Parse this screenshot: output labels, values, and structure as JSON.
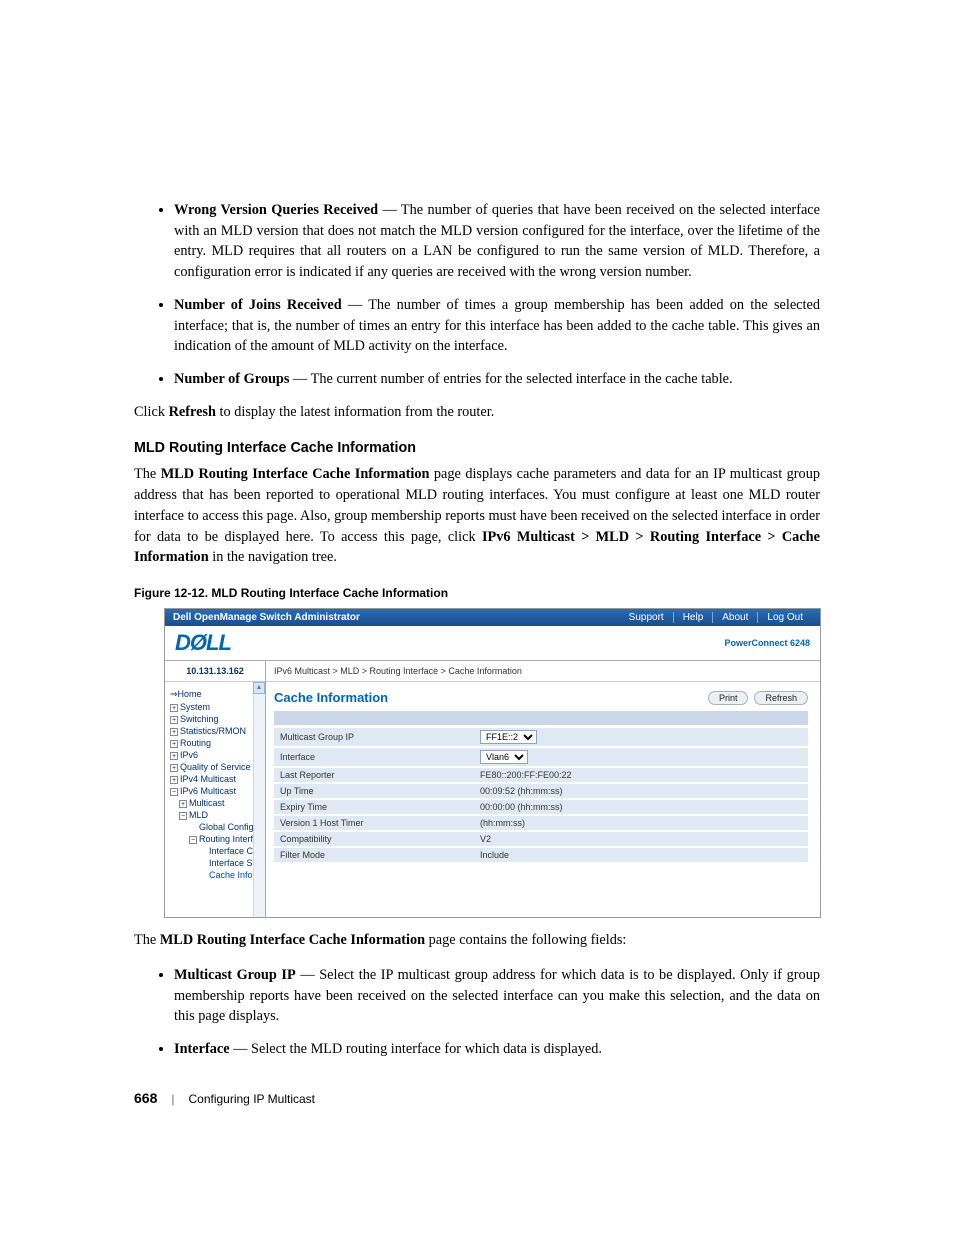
{
  "doc": {
    "bullets1": [
      {
        "term": "Wrong Version Queries Received",
        "desc": " — The number of queries that have been received on the selected interface with an MLD version that does not match the MLD version configured for the interface, over the lifetime of the entry. MLD requires that all routers on a LAN be configured to run the same version of MLD. Therefore, a configuration error is indicated if any queries are received with the wrong version number."
      },
      {
        "term": "Number of Joins Received",
        "desc": " — The number of times a group membership has been added on the selected interface; that is, the number of times an entry for this interface has been added to the cache table. This gives an indication of the amount of MLD activity on the interface."
      },
      {
        "term": "Number of Groups",
        "desc": " — The current number of entries for the selected interface in the cache table."
      }
    ],
    "refresh_sentence_pre": "Click ",
    "refresh_bold": "Refresh",
    "refresh_sentence_post": " to display the latest information from the router.",
    "section_heading": "MLD Routing Interface Cache Information",
    "para1_pre": "The ",
    "para1_bold": "MLD Routing Interface Cache Information",
    "para1_post": " page displays cache parameters and data for an IP multicast group address that has been reported to operational MLD routing interfaces. You must configure at least one MLD router interface to access this page. Also, group membership reports must have been received on the selected interface in order for data to be displayed here. To access this page, click ",
    "para1_path": "IPv6 Multicast > MLD > Routing Interface > Cache Information",
    "para1_tail": " in the navigation tree.",
    "figure_caption": "Figure 12-12.    MLD Routing Interface Cache Information",
    "para2_pre": "The ",
    "para2_bold": "MLD Routing Interface Cache Information",
    "para2_post": " page contains the following fields:",
    "bullets2": [
      {
        "term": "Multicast Group IP",
        "desc": " — Select the IP multicast group address for which data is to be displayed. Only if group membership reports have been received on the selected interface can you make this selection, and the data on this page displays."
      },
      {
        "term": "Interface",
        "desc": " — Select the MLD routing interface for which data is displayed."
      }
    ],
    "footer_page": "668",
    "footer_text": "Configuring IP Multicast"
  },
  "screenshot": {
    "titlebar_title": "Dell OpenManage Switch Administrator",
    "titlebar_links": [
      "Support",
      "Help",
      "About",
      "Log Out"
    ],
    "logo_text": "DØLL",
    "model": "PowerConnect 6248",
    "ip": "10.131.13.162",
    "breadcrumb": "IPv6 Multicast > MLD > Routing Interface > Cache Information",
    "content_title": "Cache Information",
    "btn_print": "Print",
    "btn_refresh": "Refresh",
    "tree": [
      {
        "indent": 0,
        "icon": "",
        "label": "Home",
        "prefix": "⇒"
      },
      {
        "indent": 0,
        "icon": "+",
        "label": "System"
      },
      {
        "indent": 0,
        "icon": "+",
        "label": "Switching"
      },
      {
        "indent": 0,
        "icon": "+",
        "label": "Statistics/RMON"
      },
      {
        "indent": 0,
        "icon": "+",
        "label": "Routing"
      },
      {
        "indent": 0,
        "icon": "+",
        "label": "IPv6"
      },
      {
        "indent": 0,
        "icon": "+",
        "label": "Quality of Service"
      },
      {
        "indent": 0,
        "icon": "+",
        "label": "IPv4 Multicast"
      },
      {
        "indent": 0,
        "icon": "−",
        "label": "IPv6 Multicast"
      },
      {
        "indent": 1,
        "icon": "+",
        "label": "Multicast"
      },
      {
        "indent": 1,
        "icon": "−",
        "label": "MLD"
      },
      {
        "indent": 2,
        "icon": "",
        "label": "Global Configurat"
      },
      {
        "indent": 2,
        "icon": "−",
        "label": "Routing Interface"
      },
      {
        "indent": 3,
        "icon": "",
        "label": "Interface Confi"
      },
      {
        "indent": 3,
        "icon": "",
        "label": "Interface Sum"
      },
      {
        "indent": 3,
        "icon": "",
        "label": "Cache Informa",
        "active": true
      }
    ],
    "rows": [
      {
        "label": "Multicast Group IP",
        "type": "select",
        "value": "FF1E::2"
      },
      {
        "label": "Interface",
        "type": "select",
        "value": "Vlan6"
      },
      {
        "label": "Last Reporter",
        "type": "text",
        "value": "FE80::200:FF:FE00:22"
      },
      {
        "label": "Up Time",
        "type": "text",
        "value": "00:09:52  (hh:mm:ss)"
      },
      {
        "label": "Expiry Time",
        "type": "text",
        "value": "00:00:00  (hh:mm:ss)"
      },
      {
        "label": "Version 1 Host Timer",
        "type": "text",
        "value": "          (hh:mm:ss)"
      },
      {
        "label": "Compatibility",
        "type": "text",
        "value": "V2"
      },
      {
        "label": "Filter Mode",
        "type": "text",
        "value": "Include"
      }
    ],
    "colors": {
      "titlebar_bg": "#1a4e8c",
      "link_blue": "#0066b3",
      "row_bg": "#e0e9f3",
      "divider_bg": "#c9d7e8"
    }
  }
}
